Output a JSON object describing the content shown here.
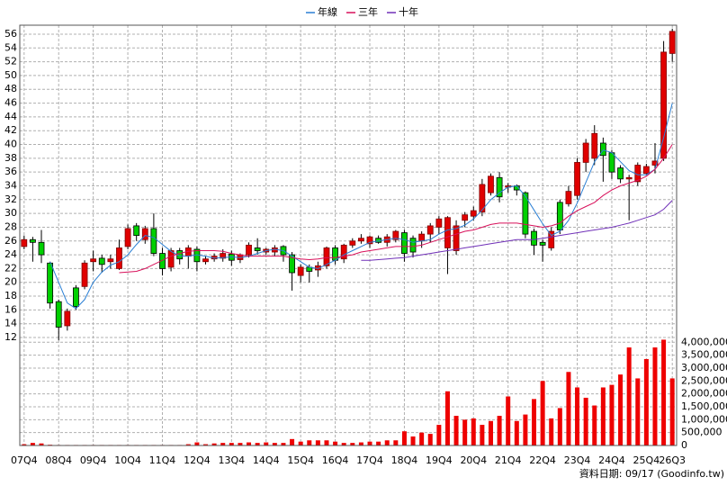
{
  "chart_data": [
    {
      "type": "candlestick",
      "categories": [
        "07Q4",
        null,
        null,
        null,
        "08Q4",
        null,
        null,
        null,
        "09Q4",
        null,
        null,
        null,
        "10Q4",
        null,
        null,
        null,
        "11Q4",
        null,
        null,
        null,
        "12Q4",
        null,
        null,
        null,
        "13Q4",
        null,
        null,
        null,
        "14Q4",
        null,
        null,
        null,
        "15Q4",
        null,
        null,
        null,
        "16Q4",
        null,
        null,
        null,
        "17Q4",
        null,
        null,
        null,
        "18Q4",
        null,
        null,
        null,
        "19Q4",
        null,
        null,
        null,
        "20Q4",
        null,
        null,
        null,
        "21Q4",
        null,
        null,
        null,
        "22Q4",
        null,
        null,
        null,
        "23Q4",
        null,
        null,
        null,
        "24Q4",
        null,
        null,
        null,
        "25Q4",
        null,
        null,
        "26Q3"
      ],
      "open": [
        25.2,
        26.2,
        25.8,
        22.8,
        17.2,
        13.7,
        19.2,
        19.4,
        23,
        23.5,
        23,
        22,
        25.2,
        28.2,
        26.2,
        27.8,
        24.2,
        22.2,
        24.6,
        23.8,
        24.8,
        23,
        23.4,
        23.5,
        24.1,
        23.3,
        24,
        25,
        24.4,
        24.4,
        25.2,
        24,
        21,
        22.2,
        21.8,
        22.4,
        25,
        23.4,
        25.4,
        26,
        25.6,
        26.4,
        25.8,
        26.2,
        27.2,
        26.4,
        26,
        27,
        28,
        25,
        24.6,
        29,
        29.6,
        30.2,
        33,
        35.2,
        33.8,
        34,
        33,
        27.4,
        25.8,
        25,
        31.6,
        31.4,
        32.6,
        37.4,
        38,
        40.2,
        38.8,
        36.6,
        35,
        34.6,
        35.8,
        37,
        38,
        53.2
      ],
      "high": [
        26.8,
        26.6,
        27.6,
        23,
        17.5,
        16.2,
        19.6,
        23.2,
        24.6,
        24,
        24,
        26.2,
        28.4,
        28.6,
        28.2,
        30,
        25,
        25,
        25,
        25.4,
        25.2,
        23.8,
        24.2,
        24.8,
        24.6,
        24.2,
        25.8,
        26.4,
        25,
        25.4,
        25.4,
        24.4,
        22.6,
        22.6,
        23,
        25.2,
        25.4,
        25.6,
        26.4,
        27,
        26.8,
        26.8,
        27,
        27.6,
        27.6,
        26.8,
        27.4,
        28.6,
        29.6,
        29.6,
        29,
        30.2,
        31,
        35,
        35.8,
        36,
        34.4,
        34.2,
        33.2,
        27.8,
        26.2,
        28,
        32,
        34,
        38,
        40.8,
        42.8,
        41,
        39.2,
        37,
        35.6,
        37.4,
        37.2,
        40.2,
        55,
        56.8
      ],
      "low": [
        24.8,
        23,
        22.8,
        16.2,
        11.6,
        13,
        16,
        19,
        21.6,
        21.4,
        22,
        21.8,
        24.8,
        26,
        25.6,
        23.8,
        21,
        21.6,
        22.6,
        22,
        21.6,
        22.6,
        23,
        23,
        22.4,
        22.8,
        23.6,
        24,
        24,
        23.8,
        23,
        18.8,
        20,
        20,
        20.8,
        22,
        22.6,
        22.8,
        25,
        25.6,
        25,
        25.6,
        25.2,
        25.8,
        23,
        23.6,
        25,
        25.8,
        27,
        21.2,
        24,
        28,
        29,
        29.6,
        32.6,
        31.6,
        33,
        32.6,
        26.4,
        24,
        23,
        24.6,
        27,
        31,
        32,
        36,
        37,
        34.6,
        35,
        34.4,
        29,
        34,
        35.6,
        35.8,
        37.6,
        52
      ],
      "close": [
        26.2,
        25.8,
        24,
        17,
        13.5,
        15.8,
        16.5,
        22.8,
        23.4,
        22.6,
        23.4,
        25,
        27.8,
        26.8,
        27.8,
        24.2,
        22,
        24.6,
        23.4,
        25,
        23,
        23.4,
        23.8,
        24.2,
        23.2,
        24,
        25.4,
        24.6,
        24.8,
        25,
        24,
        21.4,
        22.2,
        21.6,
        22.4,
        25,
        23.2,
        25.4,
        26,
        26.4,
        26.6,
        25.8,
        26.6,
        27.4,
        24.2,
        24.4,
        27,
        28.2,
        29.2,
        29.4,
        28.2,
        29.8,
        30.4,
        34.2,
        35.4,
        32.4,
        34,
        33.4,
        27,
        25.4,
        25.4,
        27.4,
        27.6,
        33.2,
        37.4,
        40.2,
        41.6,
        38.4,
        36,
        35,
        35.2,
        37,
        36.8,
        37.6,
        53.4,
        56.4
      ],
      "up_color": "#e00000",
      "down_color": "#00d000",
      "series": [
        {
          "name": "年線",
          "color": "#2a7fd4",
          "values": [
            null,
            null,
            null,
            23,
            20,
            17,
            16.2,
            17.5,
            20,
            21.5,
            22.5,
            23,
            24,
            25.5,
            26.8,
            26.5,
            25.5,
            24.5,
            23.8,
            23.8,
            24,
            23.8,
            23.5,
            23.6,
            23.7,
            23.6,
            23.8,
            24.2,
            24.6,
            24.8,
            24.6,
            23.8,
            23,
            22.2,
            22,
            22.6,
            23.2,
            24,
            24.6,
            25.2,
            25.8,
            26,
            26.2,
            26.4,
            26.2,
            25.8,
            26,
            26.2,
            27,
            27.6,
            27.8,
            28.3,
            29.2,
            30.5,
            32,
            33,
            33.8,
            34,
            32.5,
            30.5,
            28.5,
            26.8,
            27.4,
            29,
            31.5,
            34.5,
            37.5,
            39.2,
            38.8,
            37.5,
            36.2,
            35.6,
            35.6,
            36.4,
            41,
            46
          ]
        },
        {
          "name": "三年",
          "color": "#d8105a",
          "values": [
            null,
            null,
            null,
            null,
            null,
            null,
            null,
            null,
            null,
            null,
            null,
            21.4,
            21.5,
            21.6,
            22,
            22.6,
            23.2,
            23.8,
            24.2,
            24.5,
            24.6,
            24.6,
            24.6,
            24.5,
            24.2,
            24,
            23.8,
            23.8,
            23.8,
            23.8,
            23.8,
            23.6,
            23.4,
            23.3,
            23.4,
            23.6,
            23.6,
            23.8,
            24,
            24.4,
            24.6,
            24.8,
            25,
            25.2,
            25.2,
            25.2,
            25.4,
            25.8,
            26.2,
            26.6,
            27,
            27.4,
            27.6,
            28,
            28.4,
            28.6,
            28.6,
            28.6,
            28.4,
            28.2,
            28,
            28.2,
            28.6,
            29.6,
            30.4,
            31,
            31.6,
            32.6,
            33.4,
            34,
            34.4,
            34.8,
            35.4,
            36.4,
            38,
            40
          ]
        },
        {
          "name": "十年",
          "color": "#7030b8",
          "values": [
            null,
            null,
            null,
            null,
            null,
            null,
            null,
            null,
            null,
            null,
            null,
            null,
            null,
            null,
            null,
            null,
            null,
            null,
            null,
            null,
            null,
            null,
            null,
            null,
            null,
            null,
            null,
            null,
            null,
            null,
            null,
            null,
            null,
            null,
            null,
            null,
            null,
            null,
            null,
            23.2,
            23.2,
            23.3,
            23.4,
            23.5,
            23.6,
            23.8,
            24,
            24.2,
            24.4,
            24.6,
            24.8,
            25,
            25.2,
            25.4,
            25.6,
            25.8,
            26,
            26.2,
            26.2,
            26.2,
            26.4,
            26.6,
            26.8,
            27,
            27.2,
            27.4,
            27.6,
            27.8,
            28,
            28.3,
            28.6,
            29,
            29.4,
            29.8,
            30.6,
            31.9
          ]
        }
      ],
      "ylim": [
        11.35,
        57.3
      ],
      "yticks": [
        12,
        14,
        16,
        18,
        20,
        22,
        24,
        26,
        28,
        30,
        32,
        34,
        36,
        38,
        40,
        42,
        44,
        46,
        48,
        50,
        52,
        54,
        56
      ],
      "grid": true
    },
    {
      "type": "bar",
      "color": "#ee0000",
      "values": [
        50000,
        100000,
        80000,
        30000,
        20000,
        20000,
        20000,
        20000,
        20000,
        20000,
        20000,
        20000,
        20000,
        20000,
        20000,
        20000,
        20000,
        20000,
        20000,
        50000,
        120000,
        50000,
        80000,
        100000,
        100000,
        100000,
        120000,
        100000,
        120000,
        100000,
        100000,
        250000,
        150000,
        200000,
        200000,
        200000,
        150000,
        100000,
        100000,
        120000,
        150000,
        150000,
        200000,
        200000,
        550000,
        350000,
        500000,
        450000,
        800000,
        2100000,
        1150000,
        1000000,
        1050000,
        800000,
        950000,
        1150000,
        1900000,
        950000,
        1200000,
        1800000,
        2500000,
        1050000,
        1450000,
        2850000,
        2250000,
        1850000,
        1550000,
        2250000,
        2350000,
        2750000,
        3800000,
        2600000,
        3350000,
        3800000,
        4100000,
        2600000
      ],
      "ylim": [
        0,
        4150000
      ],
      "yticks": [
        0,
        {
          "value": 500000,
          "label": "500,000"
        },
        {
          "value": 1000000,
          "label": "1,000,000"
        },
        {
          "value": 1500000,
          "label": "1,500,000"
        },
        {
          "value": 2000000,
          "label": "2,000,000"
        },
        {
          "value": 2500000,
          "label": "2,500,000"
        },
        {
          "value": 3000000,
          "label": "3,000,000"
        },
        {
          "value": 3500000,
          "label": "3,500,000"
        },
        {
          "value": 4000000,
          "label": "4,000,000"
        }
      ],
      "grid": true
    }
  ],
  "footer": "資料日期: 09/17 (Goodinfo.tw)"
}
